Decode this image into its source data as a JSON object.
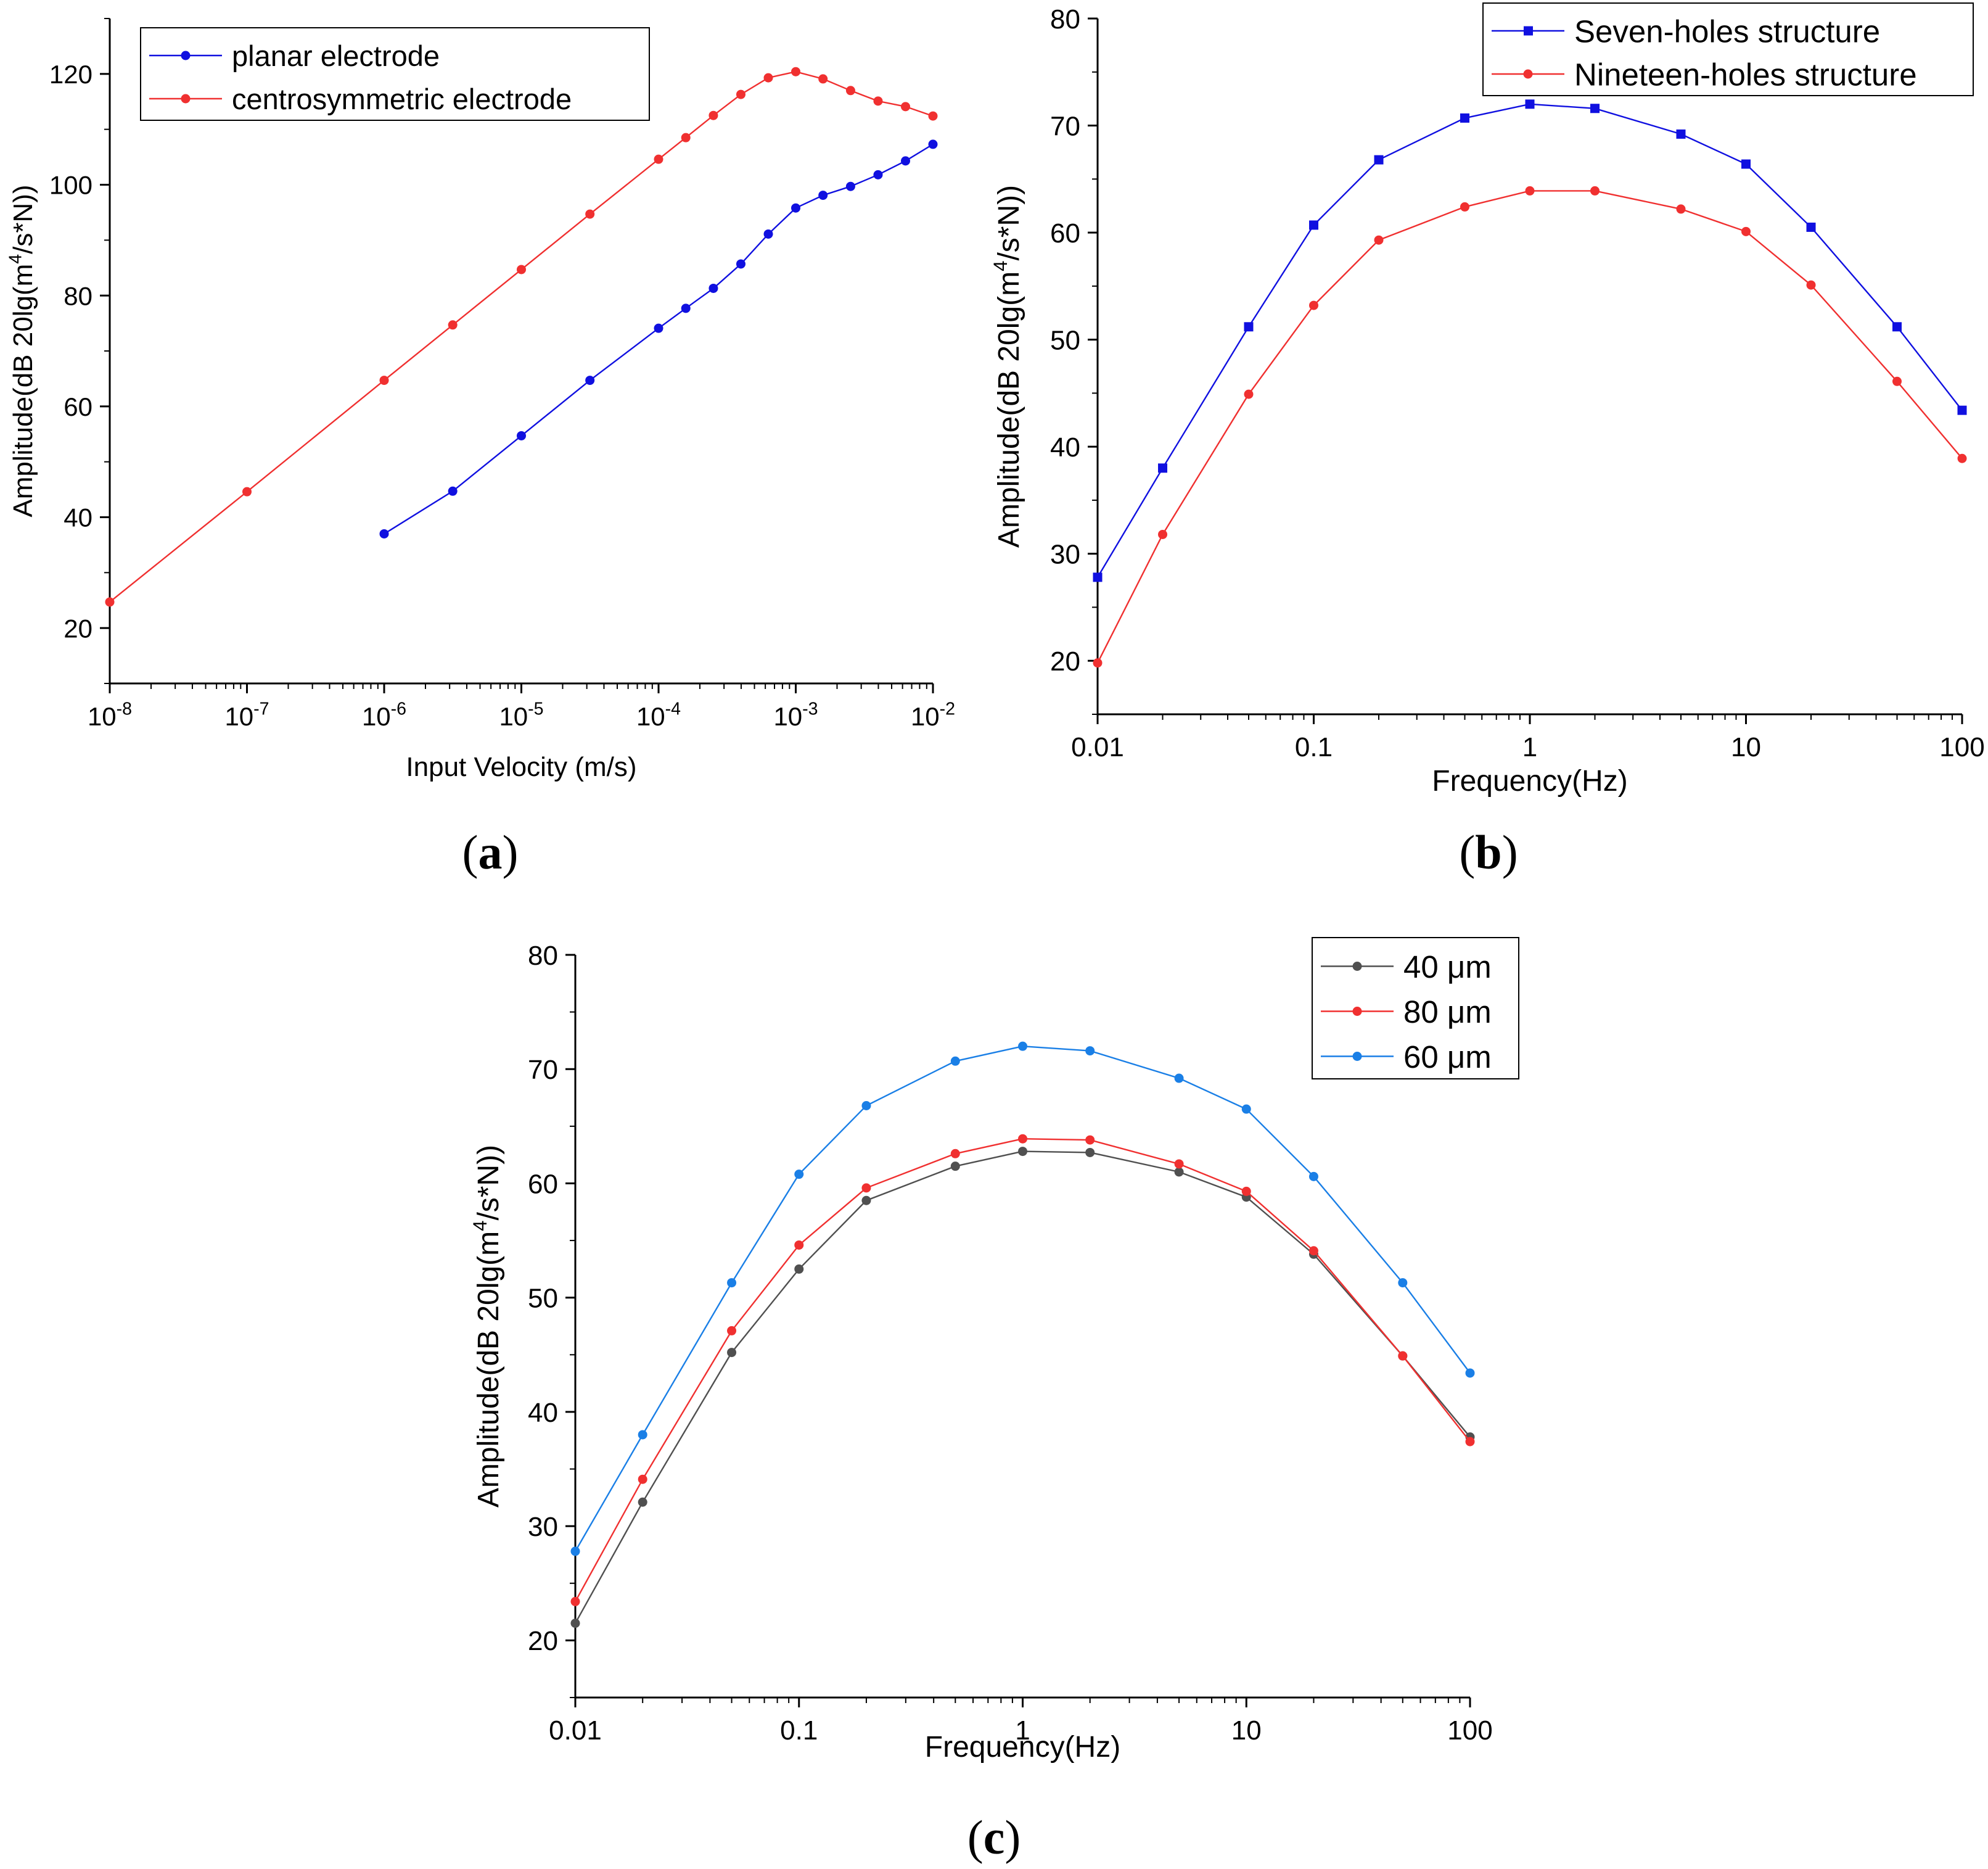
{
  "panels": [
    {
      "label": "a"
    },
    {
      "label": "b"
    },
    {
      "label": "c"
    }
  ],
  "chart_data": [
    {
      "type": "line",
      "xscale": "log",
      "xlabel": "Input Velocity (m/s)",
      "ylabel": "Amplitude(dB 20lg(m⁴/s*N))",
      "xlim": [
        1e-08,
        0.01
      ],
      "ylim": [
        10,
        130
      ],
      "xticks": [
        1e-08,
        1e-07,
        1e-06,
        1e-05,
        0.0001,
        0.001,
        0.01
      ],
      "xtick_labels": [
        [
          "10",
          "-8"
        ],
        [
          "10",
          "-7"
        ],
        [
          "10",
          "-6"
        ],
        [
          "10",
          "-5"
        ],
        [
          "10",
          "-4"
        ],
        [
          "10",
          "-3"
        ],
        [
          "10",
          "-2"
        ]
      ],
      "yticks": [
        20,
        40,
        60,
        80,
        100,
        120
      ],
      "ytick_labels": [
        "20",
        "40",
        "60",
        "80",
        "100",
        "120"
      ],
      "legend_position": "top-left",
      "series": [
        {
          "name": "planar electrode",
          "color": "#1010e0",
          "marker": "circle",
          "x": [
            1e-06,
            3.16e-06,
            1e-05,
            3.16e-05,
            0.0001,
            0.000158,
            0.000251,
            0.000398,
            0.000631,
            0.001,
            0.00158,
            0.00251,
            0.00398,
            0.00631,
            0.01
          ],
          "y": [
            37,
            44.7,
            54.7,
            64.7,
            74.1,
            77.7,
            81.3,
            85.7,
            91.1,
            95.8,
            98.1,
            99.7,
            101.8,
            104.3,
            107.3
          ]
        },
        {
          "name": "centrosymmetric electrode",
          "color": "#f03030",
          "marker": "circle",
          "x": [
            1e-08,
            1e-07,
            1e-06,
            3.16e-06,
            1e-05,
            3.16e-05,
            0.0001,
            0.000158,
            0.000251,
            0.000398,
            0.000631,
            0.001,
            0.00158,
            0.00251,
            0.00398,
            0.00631,
            0.01
          ],
          "y": [
            24.7,
            44.6,
            64.7,
            74.7,
            84.7,
            94.7,
            104.6,
            108.5,
            112.5,
            116.3,
            119.3,
            120.4,
            119.1,
            117,
            115.1,
            114.1,
            112.4
          ]
        }
      ]
    },
    {
      "type": "line",
      "xscale": "log",
      "xlabel": "Frequency(Hz)",
      "ylabel": "Amplitude(dB 20lg(m⁴/s*N))",
      "xlim": [
        0.01,
        100
      ],
      "ylim": [
        15,
        80
      ],
      "xticks": [
        0.01,
        0.1,
        1,
        10,
        100
      ],
      "xtick_labels": [
        "0.01",
        "0.1",
        "1",
        "10",
        "100"
      ],
      "yticks": [
        20,
        30,
        40,
        50,
        60,
        70,
        80
      ],
      "ytick_labels": [
        "20",
        "30",
        "40",
        "50",
        "60",
        "70",
        "80"
      ],
      "legend_position": "top-right",
      "series": [
        {
          "name": "Seven-holes structure",
          "color": "#1010e0",
          "marker": "square",
          "x": [
            0.01,
            0.02,
            0.05,
            0.1,
            0.2,
            0.5,
            1,
            2,
            5,
            10,
            20,
            50,
            100
          ],
          "y": [
            27.8,
            38,
            51.2,
            60.7,
            66.8,
            70.7,
            72,
            71.6,
            69.2,
            66.4,
            60.5,
            51.2,
            43.4
          ]
        },
        {
          "name": "Nineteen-holes structure",
          "color": "#f03030",
          "marker": "circle",
          "x": [
            0.01,
            0.02,
            0.05,
            0.1,
            0.2,
            0.5,
            1,
            2,
            5,
            10,
            20,
            50,
            100
          ],
          "y": [
            19.8,
            31.8,
            44.9,
            53.2,
            59.3,
            62.4,
            63.9,
            63.9,
            62.2,
            60.1,
            55.1,
            46.1,
            38.9
          ]
        }
      ]
    },
    {
      "type": "line",
      "xscale": "log",
      "xlabel": "Frequency(Hz)",
      "ylabel": "Amplitude(dB 20lg(m⁴/s*N))",
      "xlim": [
        0.01,
        100
      ],
      "ylim": [
        15,
        80
      ],
      "xticks": [
        0.01,
        0.1,
        1,
        10,
        100
      ],
      "xtick_labels": [
        "0.01",
        "0.1",
        "1",
        "10",
        "100"
      ],
      "yticks": [
        20,
        30,
        40,
        50,
        60,
        70,
        80
      ],
      "ytick_labels": [
        "20",
        "30",
        "40",
        "50",
        "60",
        "70",
        "80"
      ],
      "legend_position": "top-right",
      "series": [
        {
          "name": "40 μm",
          "color": "#505050",
          "marker": "circle",
          "x": [
            0.01,
            0.02,
            0.05,
            0.1,
            0.2,
            0.5,
            1,
            2,
            5,
            10,
            20,
            50,
            100
          ],
          "y": [
            21.5,
            32.1,
            45.2,
            52.5,
            58.5,
            61.5,
            62.8,
            62.7,
            61,
            58.8,
            53.8,
            44.9,
            37.8
          ]
        },
        {
          "name": "80 μm",
          "color": "#f03030",
          "marker": "circle",
          "x": [
            0.01,
            0.02,
            0.05,
            0.1,
            0.2,
            0.5,
            1,
            2,
            5,
            10,
            20,
            50,
            100
          ],
          "y": [
            23.4,
            34.1,
            47.1,
            54.6,
            59.6,
            62.6,
            63.9,
            63.8,
            61.7,
            59.3,
            54.1,
            44.9,
            37.4
          ]
        },
        {
          "name": "60 μm",
          "color": "#1a7fe6",
          "marker": "circle",
          "x": [
            0.01,
            0.02,
            0.05,
            0.1,
            0.2,
            0.5,
            1,
            2,
            5,
            10,
            20,
            50,
            100
          ],
          "y": [
            27.8,
            38,
            51.3,
            60.8,
            66.8,
            70.7,
            72,
            71.6,
            69.2,
            66.5,
            60.6,
            51.3,
            43.4
          ]
        }
      ]
    }
  ]
}
